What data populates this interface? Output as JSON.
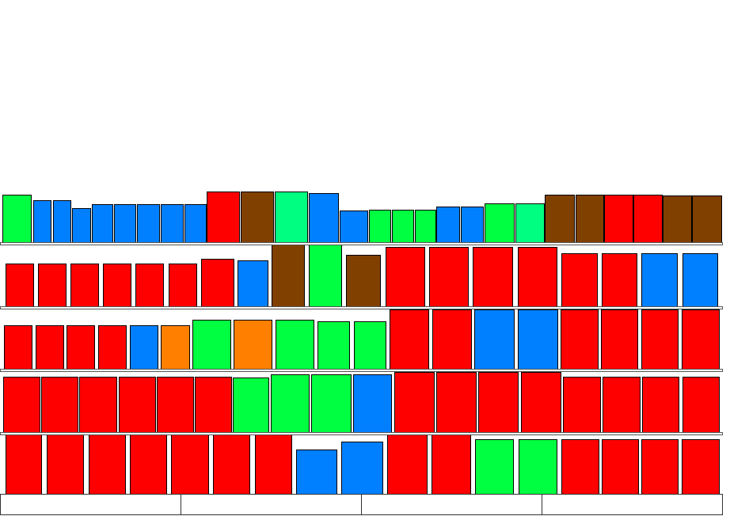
{
  "shelves": [
    [
      "#00ff40",
      "#0080ff",
      "#0080ff",
      "#0080ff",
      "#0080ff",
      "#0080ff",
      "#0080ff",
      "#0080ff",
      "#0080ff",
      "#ff0000",
      "#804000",
      "#00ff80",
      "#0080ff",
      "#0080ff",
      "#00ff40",
      "#00ff40",
      "#00ff40",
      "#0080ff",
      "#0080ff",
      "#00ff40",
      "#00ff80",
      "#804000",
      "#804000",
      "#ff0000",
      "#ff0000",
      "#804000",
      "#804000"
    ],
    [
      "#ff0000",
      "#ff0000",
      "#ff0000",
      "#ff0000",
      "#ff0000",
      "#ff0000",
      "#ff0000",
      "#0080ff",
      "#804000",
      "#00ff40",
      "#804000",
      "#ff0000",
      "#ff0000",
      "#ff0000",
      "#ff0000",
      "#ff0000",
      "#ff0000",
      "#0080ff",
      "#0080ff"
    ],
    [
      "#ff0000",
      "#ff0000",
      "#ff0000",
      "#ff0000",
      "#0080ff",
      "#ff8000",
      "#00ff40",
      "#ff8000",
      "#00ff40",
      "#00ff40",
      "#00ff40",
      "#ff0000",
      "#ff0000",
      "#0080ff",
      "#0080ff",
      "#ff0000",
      "#ff0000",
      "#ff0000",
      "#ff0000"
    ],
    [
      "#ff0000",
      "#ff0000",
      "#ff0000",
      "#ff0000",
      "#ff0000",
      "#ff0000",
      "#00ff40",
      "#00ff40",
      "#00ff40",
      "#0080ff",
      "#ff0000",
      "#ff0000",
      "#ff0000",
      "#ff0000",
      "#ff0000",
      "#ff0000",
      "#ff0000",
      "#ff0000"
    ],
    [
      "#ff0000",
      "#ff0000",
      "#ff0000",
      "#ff0000",
      "#ff0000",
      "#ff0000",
      "#ff0000",
      "#0080ff",
      "#0080ff",
      "#ff0000",
      "#ff0000",
      "#00ff40",
      "#00ff40",
      "#ff0000",
      "#ff0000",
      "#ff0000",
      "#ff0000"
    ]
  ]
}
